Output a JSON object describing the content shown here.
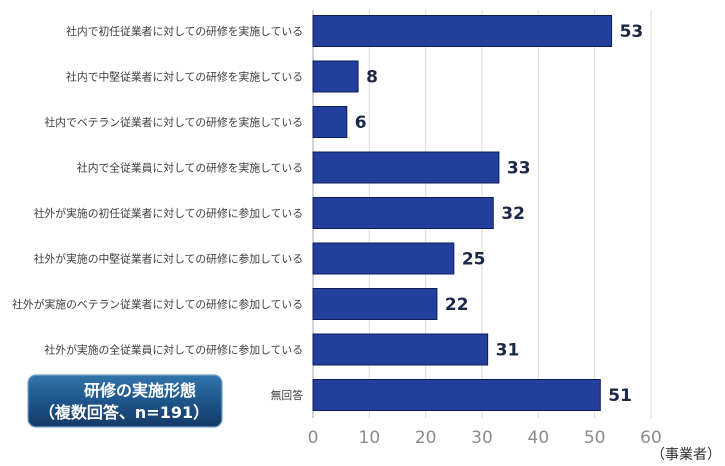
{
  "chart_data": {
    "type": "bar",
    "orientation": "horizontal",
    "title": "研修の実施形態",
    "subtitle": "（複数回答、n=191）",
    "categories": [
      "社内で初任従業者に対しての研修を実施している",
      "社内で中堅従業者に対しての研修を実施している",
      "社内でベテラン従業者に対しての研修を実施している",
      "社内で全従業員に対しての研修を実施している",
      "社外が実施の初任従業者に対しての研修に参加している",
      "社外が実施の中堅従業者に対しての研修に参加している",
      "社外が実施のベテラン従業者に対しての研修に参加している",
      "社外が実施の全従業員に対しての研修に参加している",
      "無回答"
    ],
    "values": [
      53,
      8,
      6,
      33,
      32,
      25,
      22,
      31,
      51
    ],
    "xlim": [
      0,
      60
    ],
    "xticks": [
      0,
      10,
      20,
      30,
      40,
      50,
      60
    ],
    "unit_label": "（事業者）",
    "grid": true,
    "colors": {
      "bar": "#22409b",
      "bar_border": "#0c1c58",
      "value_label": "#1c2747",
      "tick_label": "#8c8c8c",
      "grid": "#dadada",
      "axis": "#a8a8a8"
    }
  }
}
